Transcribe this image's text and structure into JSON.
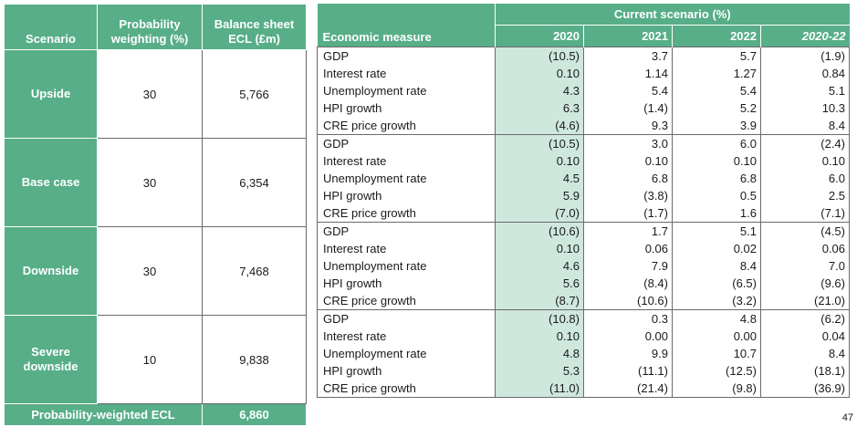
{
  "left_table": {
    "headers": [
      "Scenario",
      "Probability weighting (%)",
      "Balance sheet ECL (£m)"
    ],
    "rows": [
      {
        "scenario": "Upside",
        "weight": "30",
        "ecl": "5,766"
      },
      {
        "scenario": "Base case",
        "weight": "30",
        "ecl": "6,354"
      },
      {
        "scenario": "Downside",
        "weight": "30",
        "ecl": "7,468"
      },
      {
        "scenario": "Severe downside",
        "weight": "10",
        "ecl": "9,838"
      }
    ],
    "total_label": "Probability-weighted ECL",
    "total_value": "6,860"
  },
  "right_table": {
    "group_header": "Current scenario (%)",
    "measure_header": "Economic measure",
    "years": [
      "2020",
      "2021",
      "2022",
      "2020-22"
    ],
    "groups": [
      {
        "rows": [
          {
            "measure": "GDP",
            "values": [
              "(10.5)",
              "3.7",
              "5.7",
              "(1.9)"
            ]
          },
          {
            "measure": "Interest rate",
            "values": [
              "0.10",
              "1.14",
              "1.27",
              "0.84"
            ]
          },
          {
            "measure": "Unemployment rate",
            "values": [
              "4.3",
              "5.4",
              "5.4",
              "5.1"
            ]
          },
          {
            "measure": "HPI growth",
            "values": [
              "6.3",
              "(1.4)",
              "5.2",
              "10.3"
            ]
          },
          {
            "measure": "CRE price growth",
            "values": [
              "(4.6)",
              "9.3",
              "3.9",
              "8.4"
            ]
          }
        ]
      },
      {
        "rows": [
          {
            "measure": "GDP",
            "values": [
              "(10.5)",
              "3.0",
              "6.0",
              "(2.4)"
            ]
          },
          {
            "measure": "Interest rate",
            "values": [
              "0.10",
              "0.10",
              "0.10",
              "0.10"
            ]
          },
          {
            "measure": "Unemployment rate",
            "values": [
              "4.5",
              "6.8",
              "6.8",
              "6.0"
            ]
          },
          {
            "measure": "HPI growth",
            "values": [
              "5.9",
              "(3.8)",
              "0.5",
              "2.5"
            ]
          },
          {
            "measure": "CRE price growth",
            "values": [
              "(7.0)",
              "(1.7)",
              "1.6",
              "(7.1)"
            ]
          }
        ]
      },
      {
        "rows": [
          {
            "measure": "GDP",
            "values": [
              "(10.6)",
              "1.7",
              "5.1",
              "(4.5)"
            ]
          },
          {
            "measure": "Interest rate",
            "values": [
              "0.10",
              "0.06",
              "0.02",
              "0.06"
            ]
          },
          {
            "measure": "Unemployment rate",
            "values": [
              "4.6",
              "7.9",
              "8.4",
              "7.0"
            ]
          },
          {
            "measure": "HPI growth",
            "values": [
              "5.6",
              "(8.4)",
              "(6.5)",
              "(9.6)"
            ]
          },
          {
            "measure": "CRE price growth",
            "values": [
              "(8.7)",
              "(10.6)",
              "(3.2)",
              "(21.0)"
            ]
          }
        ]
      },
      {
        "rows": [
          {
            "measure": "GDP",
            "values": [
              "(10.8)",
              "0.3",
              "4.8",
              "(6.2)"
            ]
          },
          {
            "measure": "Interest rate",
            "values": [
              "0.10",
              "0.00",
              "0.00",
              "0.04"
            ]
          },
          {
            "measure": "Unemployment rate",
            "values": [
              "4.8",
              "9.9",
              "10.7",
              "8.4"
            ]
          },
          {
            "measure": "HPI growth",
            "values": [
              "5.3",
              "(11.1)",
              "(12.5)",
              "(18.1)"
            ]
          },
          {
            "measure": "CRE price growth",
            "values": [
              "(11.0)",
              "(21.4)",
              "(9.8)",
              "(36.9)"
            ]
          }
        ]
      }
    ]
  },
  "page_number": "47",
  "colors": {
    "header_green": "#57ae87",
    "highlight_green": "#cfe8de"
  }
}
